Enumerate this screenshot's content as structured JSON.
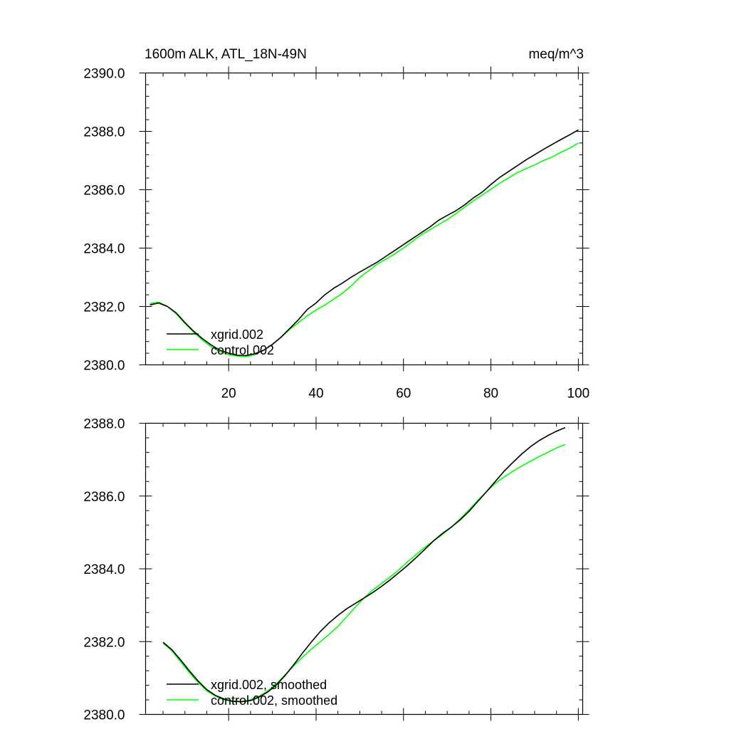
{
  "chart_data": [
    {
      "type": "line",
      "title_left": "1600m ALK, ATL_18N-49N",
      "title_right": "meq/m^3",
      "xlim": [
        1,
        101
      ],
      "ylim": [
        2380.0,
        2390.0
      ],
      "x_ticks": [
        20,
        40,
        60,
        80,
        100
      ],
      "x_ticklabels": [
        "20",
        "40",
        "60",
        "80",
        "100"
      ],
      "y_ticks": [
        2380.0,
        2382.0,
        2384.0,
        2386.0,
        2388.0,
        2390.0
      ],
      "y_ticklabels": [
        "2380.0",
        "2382.0",
        "2384.0",
        "2386.0",
        "2388.0",
        "2390.0"
      ],
      "legend_position": "bottom-left",
      "series": [
        {
          "name": "xgrid.002",
          "color": "#000000",
          "x": [
            2,
            4,
            6,
            8,
            10,
            12,
            14,
            16,
            18,
            20,
            22,
            24,
            26,
            28,
            30,
            32,
            34,
            36,
            38,
            40,
            42,
            44,
            46,
            48,
            50,
            52,
            54,
            56,
            58,
            60,
            62,
            64,
            66,
            68,
            70,
            72,
            74,
            76,
            78,
            80,
            82,
            84,
            86,
            88,
            90,
            92,
            94,
            96,
            98,
            100
          ],
          "y": [
            2382.05,
            2382.12,
            2382.0,
            2381.78,
            2381.45,
            2381.15,
            2380.9,
            2380.68,
            2380.5,
            2380.4,
            2380.33,
            2380.32,
            2380.38,
            2380.5,
            2380.7,
            2380.95,
            2381.25,
            2381.55,
            2381.9,
            2382.12,
            2382.4,
            2382.62,
            2382.8,
            2383.0,
            2383.18,
            2383.35,
            2383.52,
            2383.72,
            2383.92,
            2384.12,
            2384.32,
            2384.52,
            2384.72,
            2384.95,
            2385.12,
            2385.28,
            2385.48,
            2385.72,
            2385.92,
            2386.18,
            2386.42,
            2386.62,
            2386.82,
            2387.02,
            2387.2,
            2387.38,
            2387.55,
            2387.72,
            2387.88,
            2388.05
          ]
        },
        {
          "name": "control.002",
          "color": "#00ff00",
          "x": [
            2,
            4,
            6,
            8,
            10,
            12,
            14,
            16,
            18,
            20,
            22,
            24,
            26,
            28,
            30,
            32,
            34,
            36,
            38,
            40,
            42,
            44,
            46,
            48,
            50,
            52,
            54,
            56,
            58,
            60,
            62,
            64,
            66,
            68,
            70,
            72,
            74,
            76,
            78,
            80,
            82,
            84,
            86,
            88,
            90,
            92,
            94,
            96,
            98,
            100
          ],
          "y": [
            2382.1,
            2382.15,
            2382.0,
            2381.75,
            2381.42,
            2381.12,
            2380.85,
            2380.62,
            2380.45,
            2380.35,
            2380.3,
            2380.28,
            2380.35,
            2380.5,
            2380.7,
            2380.95,
            2381.22,
            2381.45,
            2381.68,
            2381.88,
            2382.05,
            2382.25,
            2382.45,
            2382.7,
            2383.0,
            2383.22,
            2383.45,
            2383.62,
            2383.8,
            2384.0,
            2384.22,
            2384.45,
            2384.62,
            2384.8,
            2384.98,
            2385.18,
            2385.4,
            2385.62,
            2385.82,
            2386.02,
            2386.22,
            2386.4,
            2386.58,
            2386.72,
            2386.85,
            2387.0,
            2387.12,
            2387.28,
            2387.42,
            2387.6
          ]
        }
      ]
    },
    {
      "type": "line",
      "xlim": [
        1,
        101
      ],
      "ylim": [
        2380.0,
        2388.0
      ],
      "x_ticks": [
        20,
        40,
        60,
        80,
        100
      ],
      "y_ticks": [
        2380.0,
        2382.0,
        2384.0,
        2386.0,
        2388.0
      ],
      "y_ticklabels": [
        "2380.0",
        "2382.0",
        "2384.0",
        "2386.0",
        "2388.0"
      ],
      "legend_position": "bottom-left",
      "series": [
        {
          "name": "xgrid.002, smoothed",
          "color": "#000000",
          "x": [
            5,
            7,
            9,
            11,
            13,
            15,
            17,
            19,
            21,
            23,
            25,
            27,
            29,
            31,
            33,
            35,
            37,
            39,
            41,
            43,
            45,
            47,
            49,
            51,
            53,
            55,
            57,
            59,
            61,
            63,
            65,
            67,
            69,
            71,
            73,
            75,
            77,
            79,
            81,
            83,
            85,
            87,
            89,
            91,
            93,
            95,
            97
          ],
          "y": [
            2381.98,
            2381.78,
            2381.5,
            2381.2,
            2380.92,
            2380.68,
            2380.52,
            2380.42,
            2380.36,
            2380.35,
            2380.38,
            2380.48,
            2380.62,
            2380.82,
            2381.08,
            2381.38,
            2381.7,
            2382.0,
            2382.28,
            2382.52,
            2382.72,
            2382.9,
            2383.05,
            2383.2,
            2383.35,
            2383.52,
            2383.7,
            2383.9,
            2384.1,
            2384.32,
            2384.55,
            2384.78,
            2384.98,
            2385.15,
            2385.35,
            2385.58,
            2385.85,
            2386.12,
            2386.4,
            2386.68,
            2386.92,
            2387.15,
            2387.35,
            2387.52,
            2387.66,
            2387.78,
            2387.88
          ]
        },
        {
          "name": "control.002, smoothed",
          "color": "#00ff00",
          "x": [
            5,
            7,
            9,
            11,
            13,
            15,
            17,
            19,
            21,
            23,
            25,
            27,
            29,
            31,
            33,
            35,
            37,
            39,
            41,
            43,
            45,
            47,
            49,
            51,
            53,
            55,
            57,
            59,
            61,
            63,
            65,
            67,
            69,
            71,
            73,
            75,
            77,
            79,
            81,
            83,
            85,
            87,
            89,
            91,
            93,
            95,
            97
          ],
          "y": [
            2381.95,
            2381.75,
            2381.45,
            2381.15,
            2380.88,
            2380.65,
            2380.5,
            2380.4,
            2380.35,
            2380.35,
            2380.4,
            2380.5,
            2380.65,
            2380.85,
            2381.1,
            2381.35,
            2381.58,
            2381.8,
            2382.0,
            2382.2,
            2382.42,
            2382.68,
            2382.95,
            2383.2,
            2383.42,
            2383.6,
            2383.78,
            2383.98,
            2384.2,
            2384.4,
            2384.6,
            2384.78,
            2384.95,
            2385.15,
            2385.38,
            2385.62,
            2385.88,
            2386.12,
            2386.35,
            2386.52,
            2386.68,
            2386.82,
            2386.95,
            2387.08,
            2387.2,
            2387.32,
            2387.42
          ]
        }
      ]
    }
  ]
}
